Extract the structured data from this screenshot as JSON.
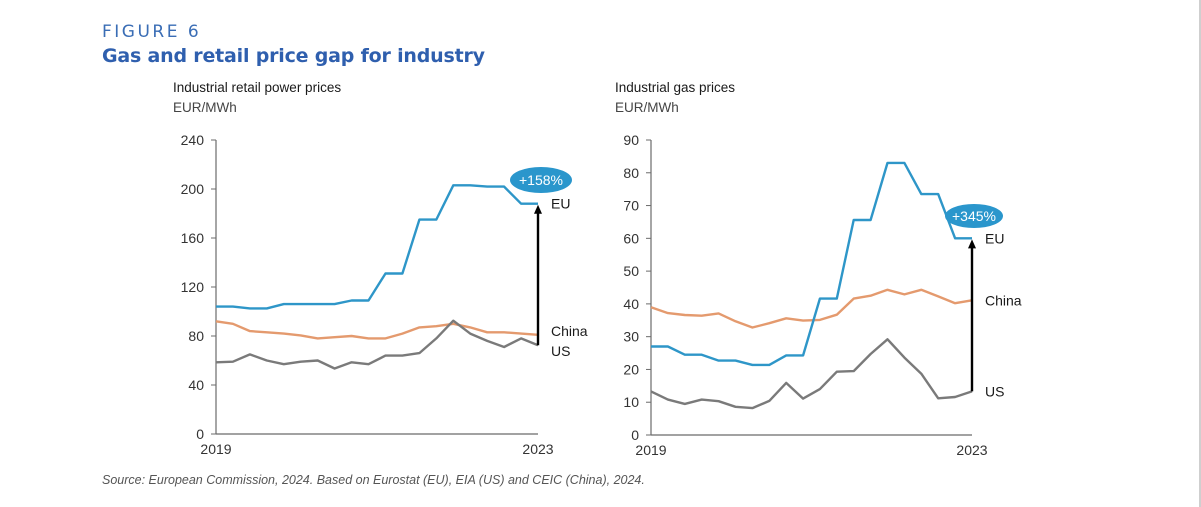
{
  "figure": {
    "label": "FIGURE 6",
    "title": "Gas and retail price gap for industry",
    "source": "Source: European Commission, 2024. Based on Eurostat (EU), EIA (US) and CEIC (China), 2024."
  },
  "colors": {
    "eu": "#2e96c8",
    "china": "#e49a6e",
    "us": "#7a7a7a",
    "bubble": "#2a96cc",
    "title": "#2f5fae",
    "axis": "#6b6b6b",
    "arrow": "#000000"
  },
  "chart_data": [
    {
      "type": "line",
      "title": "Industrial retail power prices",
      "ylabel": "EUR/MWh",
      "xlabel": "",
      "x_tick_labels": [
        "2019",
        "2023"
      ],
      "y_ticks": [
        0,
        40,
        80,
        120,
        160,
        200,
        240
      ],
      "ylim": [
        0,
        240
      ],
      "grid": false,
      "series": [
        {
          "name": "EU",
          "key": "eu",
          "values": [
            104,
            104,
            102.5,
            102.5,
            106,
            106,
            106,
            106,
            109,
            109,
            131,
            131,
            175,
            175,
            203,
            203,
            202,
            202,
            188,
            188
          ]
        },
        {
          "name": "China",
          "key": "china",
          "values": [
            92,
            90,
            84,
            83,
            82,
            80.5,
            78,
            79,
            80,
            78,
            78,
            82,
            87,
            88,
            90,
            87,
            83,
            83,
            82,
            81
          ]
        },
        {
          "name": "US",
          "key": "us",
          "values": [
            58.5,
            59,
            65,
            60,
            57,
            59,
            60,
            53.5,
            58.5,
            57,
            64,
            64,
            66,
            78,
            92.5,
            82,
            76,
            71,
            78,
            72.5
          ]
        }
      ],
      "series_labels": [
        "EU",
        "China",
        "US"
      ],
      "annotation": {
        "text": "+158%",
        "from_series": "US",
        "to_series": "EU"
      }
    },
    {
      "type": "line",
      "title": "Industrial gas prices",
      "ylabel": "EUR/MWh",
      "xlabel": "",
      "x_tick_labels": [
        "2019",
        "2023"
      ],
      "y_ticks": [
        0,
        10,
        20,
        30,
        40,
        50,
        60,
        70,
        80,
        90
      ],
      "ylim": [
        0,
        90
      ],
      "grid": false,
      "series": [
        {
          "name": "EU",
          "key": "eu",
          "values": [
            27,
            27,
            24.5,
            24.5,
            22.7,
            22.7,
            21.4,
            21.4,
            24.3,
            24.3,
            41.6,
            41.6,
            65.6,
            65.6,
            83,
            83,
            73.5,
            73.5,
            60,
            60
          ]
        },
        {
          "name": "China",
          "key": "china",
          "values": [
            39,
            37.2,
            36.6,
            36.4,
            37.1,
            34.7,
            32.8,
            34.1,
            35.6,
            34.9,
            35.1,
            36.7,
            41.6,
            42.5,
            44.3,
            42.9,
            44.3,
            42.3,
            40.2,
            41.1
          ]
        },
        {
          "name": "US",
          "key": "us",
          "values": [
            13.3,
            10.8,
            9.5,
            10.8,
            10.3,
            8.6,
            8.2,
            10.4,
            15.9,
            11.1,
            14,
            19.3,
            19.5,
            24.7,
            29.2,
            23.6,
            18.7,
            11.2,
            11.6,
            13.3
          ]
        }
      ],
      "series_labels": [
        "EU",
        "China",
        "US"
      ],
      "annotation": {
        "text": "+345%",
        "from_series": "US",
        "to_series": "EU"
      }
    }
  ]
}
